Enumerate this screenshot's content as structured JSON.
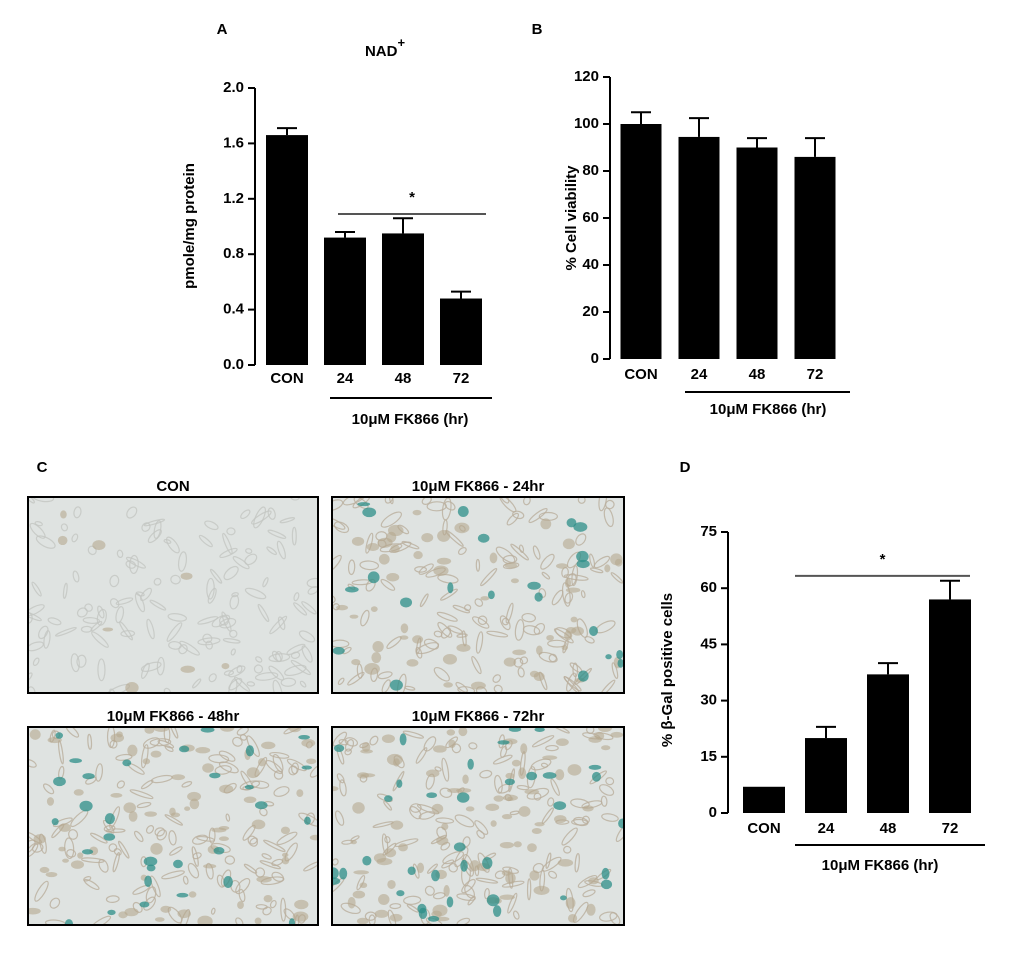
{
  "chart_data": [
    {
      "type": "bar",
      "panel": "A",
      "title": "NAD",
      "title_superscript": "+",
      "ylabel": "pmole/mg protein",
      "categories": [
        "CON",
        "24",
        "48",
        "72"
      ],
      "group_label": "10μM FK866 (hr)",
      "values": [
        1.66,
        0.92,
        0.95,
        0.48
      ],
      "errors": [
        0.05,
        0.04,
        0.11,
        0.05
      ],
      "color": "#000000",
      "ylim": [
        0,
        2.0
      ],
      "yticks": [
        {
          "value": 0,
          "label": "0.0"
        },
        0.4,
        0.8,
        1.2,
        1.6,
        {
          "value": 2.0,
          "label": "2.0"
        }
      ],
      "significance": {
        "label": "*",
        "y": 1.09
      }
    },
    {
      "type": "bar",
      "panel": "B",
      "ylabel": "% Cell viability",
      "categories": [
        "CON",
        "24",
        "48",
        "72"
      ],
      "group_label": "10μM FK866 (hr)",
      "values": [
        100,
        94.5,
        90,
        86
      ],
      "errors": [
        5,
        8,
        4,
        8
      ],
      "color": "#000000",
      "ylim": [
        0,
        120
      ],
      "yticks": [
        0,
        20,
        40,
        60,
        80,
        100,
        120
      ]
    },
    {
      "type": "bar",
      "panel": "D",
      "ylabel": "% β-Gal positive cells",
      "categories": [
        "CON",
        "24",
        "48",
        "72"
      ],
      "group_label": "10μM FK866 (hr)",
      "values": [
        7,
        20,
        37,
        57
      ],
      "errors": [
        0,
        3,
        3,
        5
      ],
      "color": "#000000",
      "ylim": [
        0,
        75
      ],
      "yticks": [
        0,
        15,
        30,
        45,
        60,
        75
      ],
      "significance": {
        "label": "*",
        "y": 63.3
      }
    }
  ],
  "image_panel": {
    "panel": "C",
    "captions": [
      "CON",
      "10μM FK866 - 24hr",
      "10μM FK866 - 48hr",
      "10μM FK866 - 72hr"
    ]
  }
}
